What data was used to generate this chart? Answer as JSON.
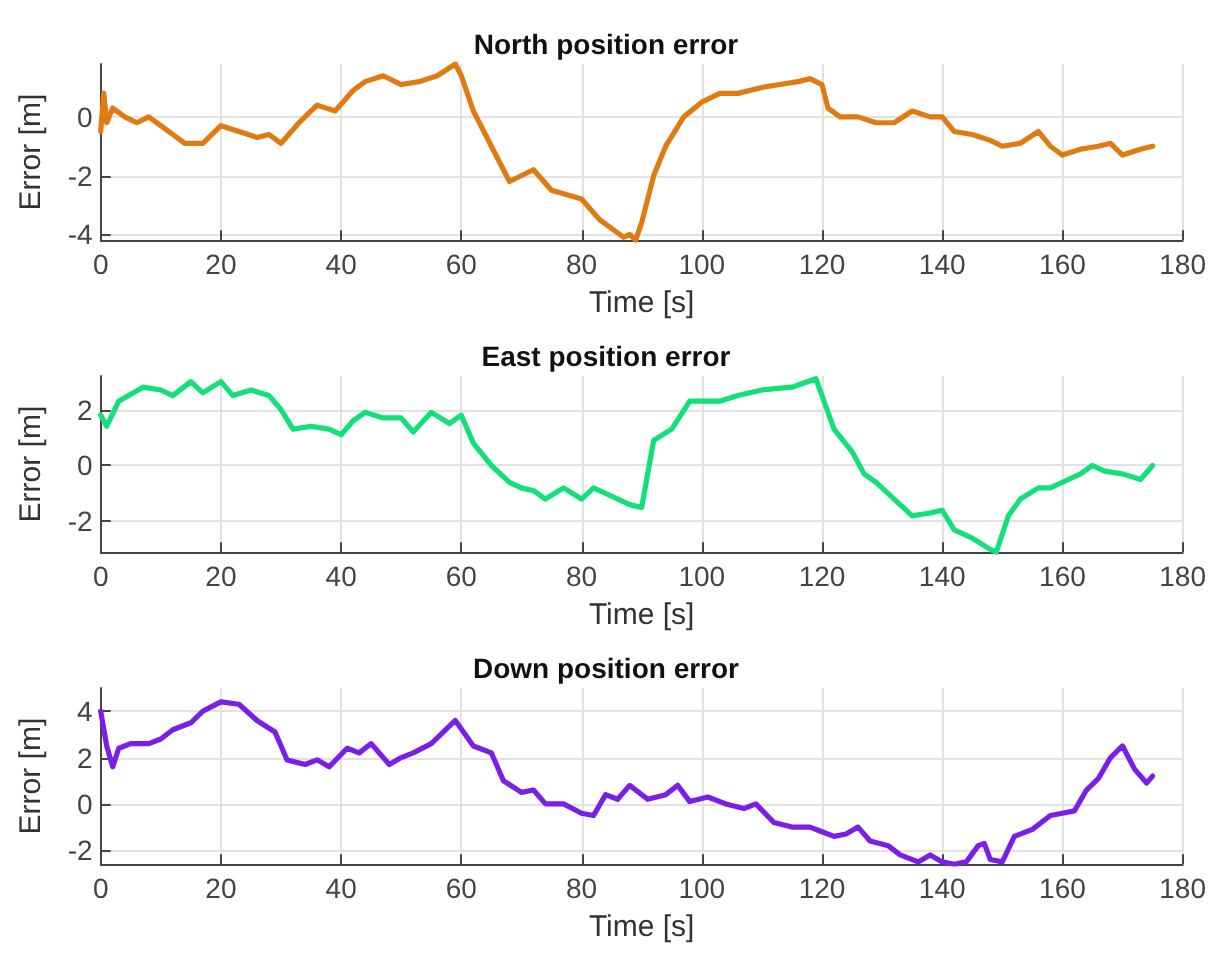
{
  "chart_data": [
    {
      "type": "line",
      "title": "North position error",
      "xlabel": "Time [s]",
      "ylabel": "Error [m]",
      "xlim": [
        0,
        180
      ],
      "xticks": [
        0,
        20,
        40,
        60,
        80,
        100,
        120,
        140,
        160,
        180
      ],
      "ylim": [
        -4.2,
        1.8
      ],
      "yticks": [
        -4,
        -2,
        0
      ],
      "grid": true,
      "line_style": "solid",
      "series": [
        {
          "color": "#e07b12",
          "x": [
            0,
            0.5,
            1,
            2,
            4,
            6,
            8,
            10,
            12,
            14,
            17,
            20,
            23,
            26,
            28,
            30,
            33,
            36,
            39,
            42,
            44,
            47,
            50,
            53,
            56,
            59,
            60,
            62,
            65,
            68,
            72,
            75,
            80,
            83,
            87,
            88,
            89,
            90,
            92,
            94,
            97,
            100,
            103,
            106,
            110,
            113,
            116,
            118,
            120,
            121,
            123,
            126,
            129,
            132,
            135,
            138,
            140,
            142,
            145,
            148,
            150,
            153,
            156,
            158,
            160,
            163,
            166,
            168,
            170,
            173,
            175
          ],
          "values": [
            -0.5,
            0.8,
            -0.2,
            0.3,
            0,
            -0.2,
            0,
            -0.3,
            -0.6,
            -0.9,
            -0.9,
            -0.3,
            -0.5,
            -0.7,
            -0.6,
            -0.9,
            -0.2,
            0.4,
            0.2,
            0.9,
            1.2,
            1.4,
            1.1,
            1.2,
            1.4,
            1.8,
            1.4,
            0.2,
            -1,
            -2.2,
            -1.8,
            -2.5,
            -2.8,
            -3.5,
            -4.1,
            -4,
            -4.2,
            -3.6,
            -2,
            -1,
            0,
            0.5,
            0.8,
            0.8,
            1,
            1.1,
            1.2,
            1.3,
            1.1,
            0.3,
            0,
            0,
            -0.2,
            -0.2,
            0.2,
            0,
            0,
            -0.5,
            -0.6,
            -0.8,
            -1,
            -0.9,
            -0.5,
            -1,
            -1.3,
            -1.1,
            -1,
            -0.9,
            -1.3,
            -1.1,
            -1
          ]
        }
      ]
    },
    {
      "type": "line",
      "title": "East position error",
      "xlabel": "Time [s]",
      "ylabel": "Error [m]",
      "xlim": [
        0,
        180
      ],
      "xticks": [
        0,
        20,
        40,
        60,
        80,
        100,
        120,
        140,
        160,
        180
      ],
      "ylim": [
        -3.1,
        3.2
      ],
      "yticks": [
        -2,
        0,
        2
      ],
      "grid": true,
      "line_style": "solid",
      "series": [
        {
          "color": "#14e07a",
          "x": [
            0,
            1,
            3,
            7,
            10,
            12,
            15,
            17,
            20,
            22,
            25,
            28,
            30,
            32,
            35,
            38,
            40,
            42,
            44,
            47,
            50,
            52,
            55,
            58,
            60,
            62,
            65,
            68,
            70,
            72,
            74,
            77,
            80,
            82,
            85,
            88,
            90,
            92,
            95,
            98,
            100,
            103,
            106,
            110,
            115,
            119,
            120,
            122,
            125,
            127,
            129,
            132,
            135,
            138,
            140,
            142,
            145,
            148,
            149,
            151,
            153,
            156,
            158,
            161,
            163,
            165,
            167,
            170,
            173,
            175
          ],
          "values": [
            1.8,
            1.4,
            2.3,
            2.8,
            2.7,
            2.5,
            3,
            2.6,
            3,
            2.5,
            2.7,
            2.5,
            2,
            1.3,
            1.4,
            1.3,
            1.1,
            1.6,
            1.9,
            1.7,
            1.7,
            1.2,
            1.9,
            1.5,
            1.8,
            0.8,
            0,
            -0.6,
            -0.8,
            -0.9,
            -1.2,
            -0.8,
            -1.2,
            -0.8,
            -1.1,
            -1.4,
            -1.5,
            0.9,
            1.3,
            2.3,
            2.3,
            2.3,
            2.5,
            2.7,
            2.8,
            3.1,
            2.5,
            1.3,
            0.5,
            -0.3,
            -0.6,
            -1.2,
            -1.8,
            -1.7,
            -1.6,
            -2.3,
            -2.6,
            -3,
            -3.1,
            -1.8,
            -1.2,
            -0.8,
            -0.8,
            -0.5,
            -0.3,
            0,
            -0.2,
            -0.3,
            -0.5,
            0
          ]
        }
      ]
    },
    {
      "type": "line",
      "title": "Down position error",
      "xlabel": "Time [s]",
      "ylabel": "Error [m]",
      "xlim": [
        0,
        180
      ],
      "xticks": [
        0,
        20,
        40,
        60,
        80,
        100,
        120,
        140,
        160,
        180
      ],
      "ylim": [
        -2.6,
        5
      ],
      "yticks": [
        -2,
        0,
        2,
        4
      ],
      "grid": true,
      "line_style": "solid",
      "series": [
        {
          "color": "#7a1ee8",
          "x": [
            0,
            1,
            2,
            3,
            5,
            8,
            10,
            12,
            15,
            17,
            20,
            23,
            26,
            29,
            31,
            34,
            36,
            38,
            41,
            43,
            45,
            48,
            50,
            52,
            55,
            59,
            62,
            65,
            67,
            70,
            72,
            74,
            77,
            80,
            82,
            84,
            86,
            88,
            91,
            94,
            96,
            98,
            101,
            104,
            107,
            109,
            112,
            115,
            118,
            120,
            122,
            124,
            126,
            128,
            131,
            133,
            136,
            138,
            140,
            142,
            144,
            146,
            147,
            148,
            150,
            152,
            155,
            158,
            160,
            162,
            164,
            166,
            168,
            170,
            172,
            174,
            175
          ],
          "values": [
            4,
            2.5,
            1.6,
            2.4,
            2.6,
            2.6,
            2.8,
            3.2,
            3.5,
            4,
            4.4,
            4.3,
            3.6,
            3.1,
            1.9,
            1.7,
            1.9,
            1.6,
            2.4,
            2.2,
            2.6,
            1.7,
            2,
            2.2,
            2.6,
            3.6,
            2.5,
            2.2,
            1,
            0.5,
            0.6,
            0,
            0,
            -0.4,
            -0.5,
            0.4,
            0.2,
            0.8,
            0.2,
            0.4,
            0.8,
            0.1,
            0.3,
            0,
            -0.2,
            0,
            -0.8,
            -1,
            -1,
            -1.2,
            -1.4,
            -1.3,
            -1,
            -1.6,
            -1.8,
            -2.2,
            -2.5,
            -2.2,
            -2.5,
            -2.6,
            -2.5,
            -1.8,
            -1.7,
            -2.4,
            -2.5,
            -1.4,
            -1.1,
            -0.5,
            -0.4,
            -0.3,
            0.6,
            1.1,
            2,
            2.5,
            1.5,
            0.9,
            1.2
          ]
        }
      ]
    }
  ]
}
